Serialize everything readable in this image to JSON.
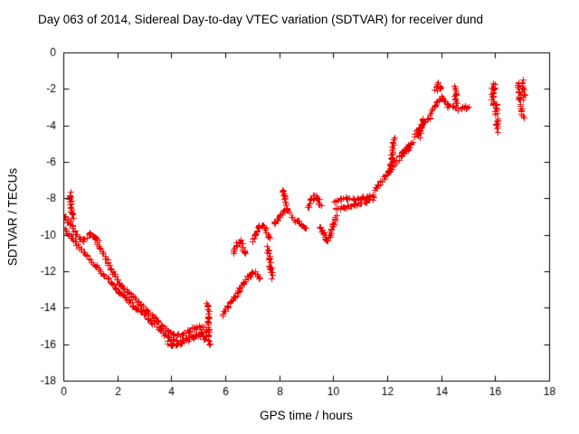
{
  "chart_data": {
    "type": "scatter",
    "title": "Day 063 of 2014, Sidereal Day-to-day VTEC variation (SDTVAR) for receiver dund",
    "xlabel": "GPS time / hours",
    "ylabel": "SDTVAR / TECUs",
    "xlim": [
      0,
      18
    ],
    "ylim": [
      -18,
      0
    ],
    "xtick_step": 2,
    "ytick_step": 2,
    "grid": false,
    "legend": "none",
    "border_color": "#000000",
    "tick_label_color": "#000000",
    "marker": {
      "shape": "plus",
      "color": "#ee0000",
      "half_size": 3
    },
    "render": {
      "spacing": 1.8,
      "jitter_x": 1.3,
      "jitter_y": 1.7,
      "seed": 42
    },
    "series": [
      {
        "name": "SDTVAR",
        "color": "#ee0000",
        "arcs": [
          [
            [
              0,
              -8.9
            ],
            [
              0.2,
              -9.3
            ],
            [
              0.45,
              -9.9
            ],
            [
              0.7,
              -10.3
            ],
            [
              0.95,
              -10.0
            ],
            [
              1.15,
              -10.1
            ],
            [
              1.35,
              -10.7
            ],
            [
              1.6,
              -11.4
            ],
            [
              1.85,
              -12.1
            ],
            [
              2.1,
              -12.7
            ],
            [
              2.35,
              -13.1
            ],
            [
              2.6,
              -13.4
            ],
            [
              2.85,
              -13.8
            ],
            [
              3.1,
              -14.2
            ],
            [
              3.35,
              -14.5
            ],
            [
              3.6,
              -14.9
            ],
            [
              3.85,
              -15.2
            ],
            [
              4.1,
              -15.5
            ],
            [
              4.35,
              -15.5
            ],
            [
              4.6,
              -15.3
            ],
            [
              4.85,
              -15.1
            ],
            [
              5.1,
              -15.0
            ],
            [
              5.3,
              -15.2
            ]
          ],
          [
            [
              0,
              -9.6
            ],
            [
              0.3,
              -10.1
            ],
            [
              0.6,
              -10.7
            ],
            [
              0.9,
              -11.2
            ],
            [
              1.2,
              -11.7
            ],
            [
              1.5,
              -12.2
            ],
            [
              1.8,
              -12.7
            ],
            [
              2.1,
              -13.2
            ],
            [
              2.4,
              -13.6
            ],
            [
              2.7,
              -14.0
            ],
            [
              3.0,
              -14.4
            ],
            [
              3.3,
              -14.8
            ],
            [
              3.6,
              -15.2
            ],
            [
              3.9,
              -15.6
            ],
            [
              4.2,
              -15.9
            ],
            [
              4.5,
              -15.8
            ],
            [
              4.8,
              -15.6
            ],
            [
              5.1,
              -15.4
            ],
            [
              5.3,
              -15.6
            ]
          ],
          [
            [
              0.22,
              -7.7
            ],
            [
              0.26,
              -8.2
            ],
            [
              0.3,
              -8.7
            ],
            [
              0.34,
              -9.1
            ]
          ],
          [
            [
              0.95,
              -9.8
            ],
            [
              1.1,
              -10.1
            ],
            [
              1.25,
              -10.3
            ]
          ],
          [
            [
              3.8,
              -15.9
            ],
            [
              4.0,
              -16.1
            ],
            [
              4.2,
              -16.0
            ],
            [
              4.45,
              -15.8
            ],
            [
              4.7,
              -15.6
            ],
            [
              4.95,
              -15.5
            ],
            [
              5.2,
              -15.7
            ]
          ],
          [
            [
              5.33,
              -13.7
            ],
            [
              5.36,
              -14.5
            ],
            [
              5.38,
              -15.3
            ],
            [
              5.4,
              -16.0
            ]
          ],
          [
            [
              5.9,
              -14.4
            ],
            [
              6.1,
              -13.9
            ],
            [
              6.3,
              -13.5
            ],
            [
              6.5,
              -13.0
            ],
            [
              6.7,
              -12.6
            ],
            [
              6.9,
              -12.2
            ],
            [
              7.1,
              -12.0
            ],
            [
              7.3,
              -12.4
            ]
          ],
          [
            [
              6.28,
              -11.0
            ],
            [
              6.4,
              -10.5
            ],
            [
              6.52,
              -10.3
            ],
            [
              6.64,
              -10.6
            ],
            [
              6.75,
              -11.1
            ]
          ],
          [
            [
              7.0,
              -10.4
            ],
            [
              7.12,
              -9.9
            ],
            [
              7.25,
              -9.5
            ],
            [
              7.38,
              -9.4
            ],
            [
              7.5,
              -9.7
            ],
            [
              7.6,
              -10.2
            ]
          ],
          [
            [
              7.55,
              -10.7
            ],
            [
              7.62,
              -11.3
            ],
            [
              7.68,
              -11.9
            ],
            [
              7.73,
              -12.3
            ]
          ],
          [
            [
              7.8,
              -9.4
            ],
            [
              7.95,
              -9.1
            ],
            [
              8.1,
              -8.8
            ],
            [
              8.25,
              -8.6
            ],
            [
              8.35,
              -8.8
            ]
          ],
          [
            [
              8.12,
              -7.5
            ],
            [
              8.18,
              -7.9
            ],
            [
              8.24,
              -8.3
            ]
          ],
          [
            [
              8.4,
              -9.0
            ],
            [
              8.6,
              -9.2
            ],
            [
              8.8,
              -9.4
            ],
            [
              9.0,
              -9.6
            ]
          ],
          [
            [
              9.08,
              -8.5
            ],
            [
              9.2,
              -8.0
            ],
            [
              9.32,
              -7.8
            ],
            [
              9.44,
              -8.1
            ],
            [
              9.52,
              -8.4
            ]
          ],
          [
            [
              9.5,
              -9.5
            ],
            [
              9.62,
              -9.9
            ],
            [
              9.74,
              -10.3
            ],
            [
              9.86,
              -10.1
            ],
            [
              9.98,
              -9.5
            ],
            [
              10.1,
              -8.9
            ]
          ],
          [
            [
              10.0,
              -8.2
            ],
            [
              10.25,
              -8.05
            ],
            [
              10.5,
              -8.0
            ],
            [
              10.75,
              -8.05
            ],
            [
              11.0,
              -8.0
            ],
            [
              11.25,
              -7.9
            ],
            [
              11.5,
              -7.8
            ]
          ],
          [
            [
              10.05,
              -8.6
            ],
            [
              10.35,
              -8.5
            ],
            [
              10.65,
              -8.4
            ],
            [
              10.95,
              -8.3
            ],
            [
              11.25,
              -8.15
            ],
            [
              11.5,
              -8.0
            ]
          ],
          [
            [
              11.55,
              -7.5
            ],
            [
              11.75,
              -7.1
            ],
            [
              11.95,
              -6.7
            ],
            [
              12.15,
              -6.3
            ],
            [
              12.35,
              -5.9
            ],
            [
              12.55,
              -5.5
            ],
            [
              12.75,
              -5.2
            ],
            [
              12.95,
              -4.9
            ]
          ],
          [
            [
              12.1,
              -6.4
            ],
            [
              12.16,
              -5.8
            ],
            [
              12.2,
              -5.2
            ],
            [
              12.25,
              -4.7
            ]
          ],
          [
            [
              12.5,
              -5.6
            ],
            [
              12.7,
              -5.4
            ],
            [
              12.9,
              -5.1
            ]
          ],
          [
            [
              13.0,
              -4.6
            ],
            [
              13.15,
              -4.2
            ],
            [
              13.3,
              -3.9
            ],
            [
              13.45,
              -3.7
            ],
            [
              13.6,
              -3.6
            ]
          ],
          [
            [
              13.18,
              -4.6
            ],
            [
              13.24,
              -4.1
            ],
            [
              13.3,
              -3.6
            ]
          ],
          [
            [
              13.6,
              -3.4
            ],
            [
              13.75,
              -3.0
            ],
            [
              13.9,
              -2.6
            ],
            [
              14.05,
              -2.4
            ]
          ],
          [
            [
              13.78,
              -2.1
            ],
            [
              13.88,
              -1.7
            ],
            [
              13.98,
              -2.0
            ]
          ],
          [
            [
              14.05,
              -2.6
            ],
            [
              14.25,
              -2.9
            ],
            [
              14.45,
              -3.0
            ],
            [
              14.65,
              -3.1
            ],
            [
              14.85,
              -3.0
            ],
            [
              15.05,
              -3.0
            ]
          ],
          [
            [
              14.5,
              -1.8
            ],
            [
              14.52,
              -2.3
            ],
            [
              14.54,
              -2.8
            ]
          ],
          [
            [
              15.88,
              -1.9
            ],
            [
              15.9,
              -2.4
            ],
            [
              15.93,
              -2.9
            ]
          ],
          [
            [
              15.95,
              -1.6
            ],
            [
              15.97,
              -2.0
            ]
          ],
          [
            [
              16.0,
              -2.7
            ],
            [
              16.03,
              -3.3
            ],
            [
              16.06,
              -3.9
            ],
            [
              16.08,
              -4.3
            ]
          ],
          [
            [
              16.85,
              -1.6
            ],
            [
              16.88,
              -2.1
            ],
            [
              16.9,
              -2.6
            ]
          ],
          [
            [
              17.0,
              -1.5
            ],
            [
              17.03,
              -2.0
            ],
            [
              17.06,
              -2.5
            ]
          ],
          [
            [
              16.95,
              -2.9
            ],
            [
              16.98,
              -3.3
            ],
            [
              17.02,
              -3.6
            ]
          ]
        ]
      }
    ]
  }
}
